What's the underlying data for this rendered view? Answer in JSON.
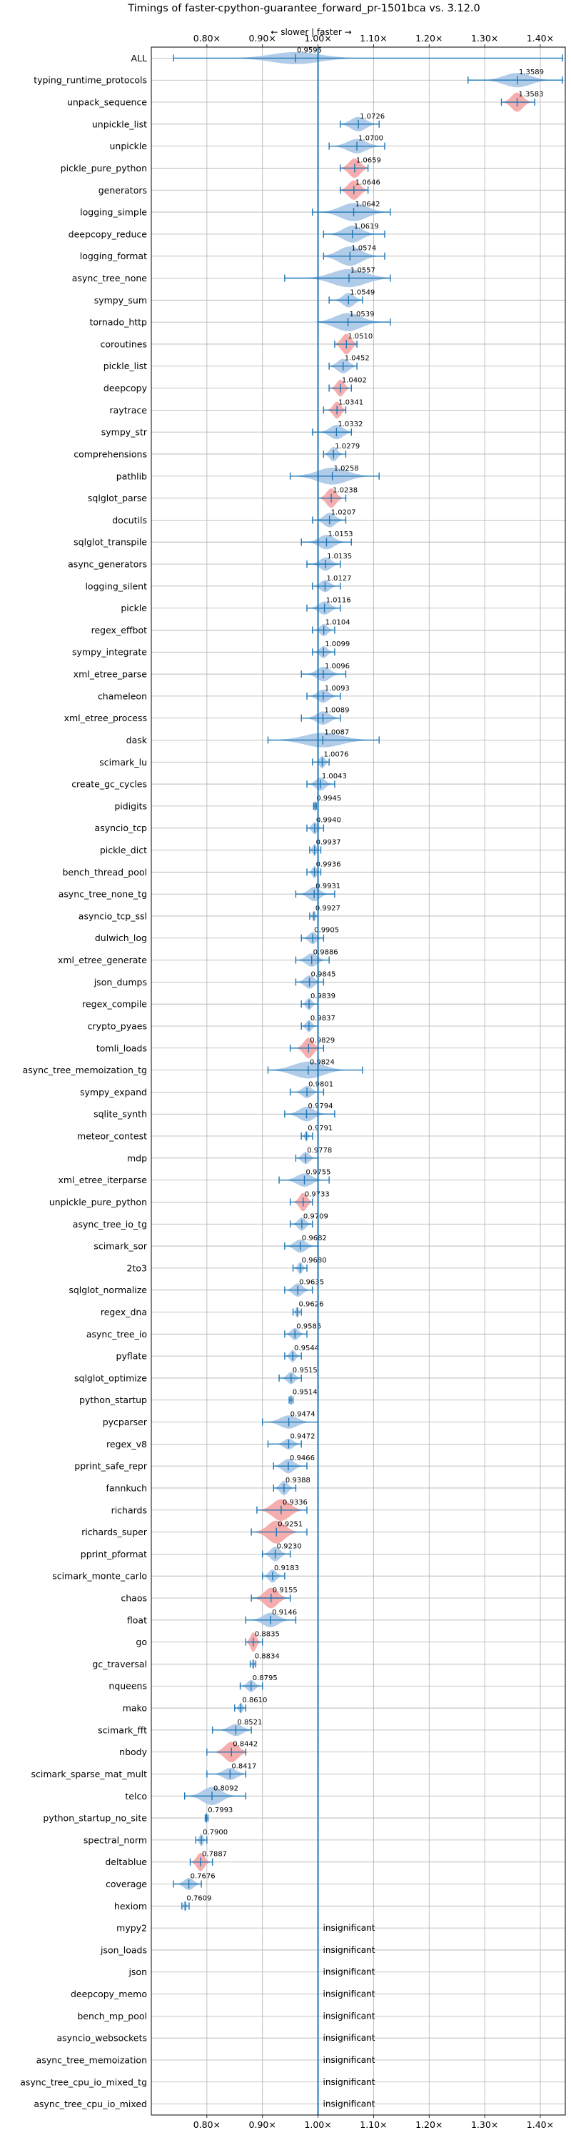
{
  "chart_data": {
    "type": "violin",
    "title": "Timings of faster-cpython-guarantee_forward_pr-1501bca vs. 3.12.0",
    "direction_hint": "← slower | faster →",
    "xlim": [
      0.7,
      1.445
    ],
    "xticks": [
      0.8,
      0.9,
      1.0,
      1.1,
      1.2,
      1.3,
      1.4
    ],
    "xtick_labels": [
      "0.80×",
      "0.90×",
      "1.00×",
      "1.10×",
      "1.20×",
      "1.30×",
      "1.40×"
    ],
    "baseline": 1.0,
    "grid": true,
    "colors": {
      "normal": "#a8c6e6",
      "highlight": "#f4a4a4",
      "line": "#1f77b4",
      "grid": "#b0b0b0"
    },
    "insignificant_label": "insignificant",
    "benchmarks": [
      {
        "name": "ALL",
        "value": 0.9595,
        "label": "0.9595",
        "lo": 0.74,
        "hi": 1.44,
        "spread": 0.13,
        "height": 0.5,
        "highlight": false
      },
      {
        "name": "typing_runtime_protocols",
        "value": 1.3589,
        "label": "1.3589",
        "lo": 1.27,
        "hi": 1.44,
        "spread": 0.07,
        "height": 0.6,
        "highlight": false
      },
      {
        "name": "unpack_sequence",
        "value": 1.3583,
        "label": "1.3583",
        "lo": 1.33,
        "hi": 1.39,
        "spread": 0.03,
        "height": 0.8,
        "highlight": true
      },
      {
        "name": "unpickle_list",
        "value": 1.0726,
        "label": "1.0726",
        "lo": 1.04,
        "hi": 1.11,
        "spread": 0.04,
        "height": 0.6,
        "highlight": false
      },
      {
        "name": "unpickle",
        "value": 1.07,
        "label": "1.0700",
        "lo": 1.02,
        "hi": 1.12,
        "spread": 0.05,
        "height": 0.6,
        "highlight": false
      },
      {
        "name": "pickle_pure_python",
        "value": 1.0659,
        "label": "1.0659",
        "lo": 1.04,
        "hi": 1.09,
        "spread": 0.03,
        "height": 0.8,
        "highlight": true
      },
      {
        "name": "generators",
        "value": 1.0646,
        "label": "1.0646",
        "lo": 1.04,
        "hi": 1.09,
        "spread": 0.03,
        "height": 0.8,
        "highlight": true
      },
      {
        "name": "logging_simple",
        "value": 1.0642,
        "label": "1.0642",
        "lo": 0.99,
        "hi": 1.13,
        "spread": 0.07,
        "height": 0.75,
        "highlight": false
      },
      {
        "name": "deepcopy_reduce",
        "value": 1.0619,
        "label": "1.0619",
        "lo": 1.01,
        "hi": 1.12,
        "spread": 0.05,
        "height": 0.7,
        "highlight": false
      },
      {
        "name": "logging_format",
        "value": 1.0574,
        "label": "1.0574",
        "lo": 1.01,
        "hi": 1.12,
        "spread": 0.06,
        "height": 0.8,
        "highlight": false
      },
      {
        "name": "async_tree_none",
        "value": 1.0557,
        "label": "1.0557",
        "lo": 0.94,
        "hi": 1.13,
        "spread": 0.09,
        "height": 0.75,
        "highlight": false
      },
      {
        "name": "sympy_sum",
        "value": 1.0549,
        "label": "1.0549",
        "lo": 1.02,
        "hi": 1.08,
        "spread": 0.03,
        "height": 0.6,
        "highlight": false
      },
      {
        "name": "tornado_http",
        "value": 1.0539,
        "label": "1.0539",
        "lo": 1.0,
        "hi": 1.13,
        "spread": 0.07,
        "height": 0.75,
        "highlight": false
      },
      {
        "name": "coroutines",
        "value": 1.051,
        "label": "1.0510",
        "lo": 1.03,
        "hi": 1.07,
        "spread": 0.025,
        "height": 0.85,
        "highlight": true
      },
      {
        "name": "pickle_list",
        "value": 1.0452,
        "label": "1.0452",
        "lo": 1.02,
        "hi": 1.07,
        "spread": 0.03,
        "height": 0.6,
        "highlight": false
      },
      {
        "name": "deepcopy",
        "value": 1.0402,
        "label": "1.0402",
        "lo": 1.02,
        "hi": 1.06,
        "spread": 0.02,
        "height": 0.7,
        "highlight": true
      },
      {
        "name": "raytrace",
        "value": 1.0341,
        "label": "1.0341",
        "lo": 1.01,
        "hi": 1.05,
        "spread": 0.02,
        "height": 0.7,
        "highlight": true
      },
      {
        "name": "sympy_str",
        "value": 1.0332,
        "label": "1.0332",
        "lo": 0.99,
        "hi": 1.06,
        "spread": 0.035,
        "height": 0.6,
        "highlight": false
      },
      {
        "name": "comprehensions",
        "value": 1.0279,
        "label": "1.0279",
        "lo": 1.01,
        "hi": 1.05,
        "spread": 0.02,
        "height": 0.6,
        "highlight": false
      },
      {
        "name": "pathlib",
        "value": 1.0258,
        "label": "1.0258",
        "lo": 0.95,
        "hi": 1.11,
        "spread": 0.08,
        "height": 0.7,
        "highlight": false
      },
      {
        "name": "sqlglot_parse",
        "value": 1.0238,
        "label": "1.0238",
        "lo": 1.0,
        "hi": 1.05,
        "spread": 0.025,
        "height": 0.8,
        "highlight": true
      },
      {
        "name": "docutils",
        "value": 1.0207,
        "label": "1.0207",
        "lo": 0.99,
        "hi": 1.05,
        "spread": 0.03,
        "height": 0.6,
        "highlight": false
      },
      {
        "name": "sqlglot_transpile",
        "value": 1.0153,
        "label": "1.0153",
        "lo": 0.97,
        "hi": 1.06,
        "spread": 0.04,
        "height": 0.6,
        "highlight": false
      },
      {
        "name": "async_generators",
        "value": 1.0135,
        "label": "1.0135",
        "lo": 0.98,
        "hi": 1.04,
        "spread": 0.03,
        "height": 0.55,
        "highlight": false
      },
      {
        "name": "logging_silent",
        "value": 1.0127,
        "label": "1.0127",
        "lo": 0.99,
        "hi": 1.04,
        "spread": 0.025,
        "height": 0.5,
        "highlight": false
      },
      {
        "name": "pickle",
        "value": 1.0116,
        "label": "1.0116",
        "lo": 0.98,
        "hi": 1.04,
        "spread": 0.03,
        "height": 0.55,
        "highlight": false
      },
      {
        "name": "regex_effbot",
        "value": 1.0104,
        "label": "1.0104",
        "lo": 0.99,
        "hi": 1.03,
        "spread": 0.02,
        "height": 0.5,
        "highlight": false
      },
      {
        "name": "sympy_integrate",
        "value": 1.0099,
        "label": "1.0099",
        "lo": 0.99,
        "hi": 1.03,
        "spread": 0.02,
        "height": 0.5,
        "highlight": false
      },
      {
        "name": "xml_etree_parse",
        "value": 1.0096,
        "label": "1.0096",
        "lo": 0.97,
        "hi": 1.05,
        "spread": 0.035,
        "height": 0.6,
        "highlight": false
      },
      {
        "name": "chameleon",
        "value": 1.0093,
        "label": "1.0093",
        "lo": 0.98,
        "hi": 1.04,
        "spread": 0.03,
        "height": 0.55,
        "highlight": false
      },
      {
        "name": "xml_etree_process",
        "value": 1.0089,
        "label": "1.0089",
        "lo": 0.97,
        "hi": 1.04,
        "spread": 0.035,
        "height": 0.55,
        "highlight": false
      },
      {
        "name": "dask",
        "value": 1.0087,
        "label": "1.0087",
        "lo": 0.91,
        "hi": 1.11,
        "spread": 0.1,
        "height": 0.6,
        "highlight": false
      },
      {
        "name": "scimark_lu",
        "value": 1.0076,
        "label": "1.0076",
        "lo": 0.99,
        "hi": 1.02,
        "spread": 0.015,
        "height": 0.5,
        "highlight": false
      },
      {
        "name": "create_gc_cycles",
        "value": 1.0043,
        "label": "1.0043",
        "lo": 0.98,
        "hi": 1.03,
        "spread": 0.025,
        "height": 0.55,
        "highlight": false
      },
      {
        "name": "pidigits",
        "value": 0.9945,
        "label": "0.9945",
        "lo": 0.992,
        "hi": 0.997,
        "spread": 0.003,
        "height": 0.45,
        "highlight": false
      },
      {
        "name": "asyncio_tcp",
        "value": 0.994,
        "label": "0.9940",
        "lo": 0.98,
        "hi": 1.01,
        "spread": 0.015,
        "height": 0.5,
        "highlight": false
      },
      {
        "name": "pickle_dict",
        "value": 0.9937,
        "label": "0.9937",
        "lo": 0.985,
        "hi": 1.005,
        "spread": 0.01,
        "height": 0.5,
        "highlight": false
      },
      {
        "name": "bench_thread_pool",
        "value": 0.9936,
        "label": "0.9936",
        "lo": 0.98,
        "hi": 1.005,
        "spread": 0.012,
        "height": 0.5,
        "highlight": false
      },
      {
        "name": "async_tree_none_tg",
        "value": 0.9931,
        "label": "0.9931",
        "lo": 0.96,
        "hi": 1.03,
        "spread": 0.03,
        "height": 0.6,
        "highlight": false
      },
      {
        "name": "asyncio_tcp_ssl",
        "value": 0.9927,
        "label": "0.9927",
        "lo": 0.985,
        "hi": 1.0,
        "spread": 0.008,
        "height": 0.45,
        "highlight": false
      },
      {
        "name": "dulwich_log",
        "value": 0.9905,
        "label": "0.9905",
        "lo": 0.97,
        "hi": 1.01,
        "spread": 0.02,
        "height": 0.5,
        "highlight": false
      },
      {
        "name": "xml_etree_generate",
        "value": 0.9886,
        "label": "0.9886",
        "lo": 0.96,
        "hi": 1.02,
        "spread": 0.03,
        "height": 0.55,
        "highlight": false
      },
      {
        "name": "json_dumps",
        "value": 0.9845,
        "label": "0.9845",
        "lo": 0.96,
        "hi": 1.01,
        "spread": 0.025,
        "height": 0.55,
        "highlight": false
      },
      {
        "name": "regex_compile",
        "value": 0.9839,
        "label": "0.9839",
        "lo": 0.97,
        "hi": 1.0,
        "spread": 0.015,
        "height": 0.5,
        "highlight": false
      },
      {
        "name": "crypto_pyaes",
        "value": 0.9837,
        "label": "0.9837",
        "lo": 0.97,
        "hi": 1.0,
        "spread": 0.015,
        "height": 0.5,
        "highlight": false
      },
      {
        "name": "tomli_loads",
        "value": 0.9829,
        "label": "0.9829",
        "lo": 0.95,
        "hi": 1.01,
        "spread": 0.025,
        "height": 0.85,
        "highlight": true
      },
      {
        "name": "async_tree_memoization_tg",
        "value": 0.9824,
        "label": "0.9824",
        "lo": 0.91,
        "hi": 1.08,
        "spread": 0.08,
        "height": 0.7,
        "highlight": false
      },
      {
        "name": "sympy_expand",
        "value": 0.9801,
        "label": "0.9801",
        "lo": 0.95,
        "hi": 1.01,
        "spread": 0.025,
        "height": 0.5,
        "highlight": false
      },
      {
        "name": "sqlite_synth",
        "value": 0.9794,
        "label": "0.9794",
        "lo": 0.94,
        "hi": 1.03,
        "spread": 0.04,
        "height": 0.6,
        "highlight": false
      },
      {
        "name": "meteor_contest",
        "value": 0.9791,
        "label": "0.9791",
        "lo": 0.97,
        "hi": 0.99,
        "spread": 0.008,
        "height": 0.45,
        "highlight": false
      },
      {
        "name": "mdp",
        "value": 0.9778,
        "label": "0.9778",
        "lo": 0.96,
        "hi": 1.0,
        "spread": 0.02,
        "height": 0.5,
        "highlight": false
      },
      {
        "name": "xml_etree_iterparse",
        "value": 0.9755,
        "label": "0.9755",
        "lo": 0.93,
        "hi": 1.02,
        "spread": 0.04,
        "height": 0.55,
        "highlight": false
      },
      {
        "name": "unpickle_pure_python",
        "value": 0.9733,
        "label": "0.9733",
        "lo": 0.95,
        "hi": 0.99,
        "spread": 0.02,
        "height": 0.75,
        "highlight": true
      },
      {
        "name": "async_tree_io_tg",
        "value": 0.9709,
        "label": "0.9709",
        "lo": 0.95,
        "hi": 0.99,
        "spread": 0.02,
        "height": 0.55,
        "highlight": false
      },
      {
        "name": "scimark_sor",
        "value": 0.9682,
        "label": "0.9682",
        "lo": 0.94,
        "hi": 1.0,
        "spread": 0.03,
        "height": 0.55,
        "highlight": false
      },
      {
        "name": "2to3",
        "value": 0.968,
        "label": "0.9680",
        "lo": 0.955,
        "hi": 0.98,
        "spread": 0.012,
        "height": 0.5,
        "highlight": false
      },
      {
        "name": "sqlglot_normalize",
        "value": 0.9635,
        "label": "0.9635",
        "lo": 0.94,
        "hi": 0.99,
        "spread": 0.025,
        "height": 0.55,
        "highlight": false
      },
      {
        "name": "regex_dna",
        "value": 0.9626,
        "label": "0.9626",
        "lo": 0.955,
        "hi": 0.97,
        "spread": 0.008,
        "height": 0.45,
        "highlight": false
      },
      {
        "name": "async_tree_io",
        "value": 0.9585,
        "label": "0.9585",
        "lo": 0.94,
        "hi": 0.98,
        "spread": 0.02,
        "height": 0.5,
        "highlight": false
      },
      {
        "name": "pyflate",
        "value": 0.9544,
        "label": "0.9544",
        "lo": 0.94,
        "hi": 0.97,
        "spread": 0.015,
        "height": 0.5,
        "highlight": false
      },
      {
        "name": "sqlglot_optimize",
        "value": 0.9515,
        "label": "0.9515",
        "lo": 0.93,
        "hi": 0.97,
        "spread": 0.02,
        "height": 0.5,
        "highlight": false
      },
      {
        "name": "python_startup",
        "value": 0.9514,
        "label": "0.9514",
        "lo": 0.948,
        "hi": 0.955,
        "spread": 0.004,
        "height": 0.45,
        "highlight": false
      },
      {
        "name": "pycparser",
        "value": 0.9474,
        "label": "0.9474",
        "lo": 0.9,
        "hi": 1.0,
        "spread": 0.045,
        "height": 0.55,
        "highlight": false
      },
      {
        "name": "regex_v8",
        "value": 0.9472,
        "label": "0.9472",
        "lo": 0.91,
        "hi": 0.97,
        "spread": 0.025,
        "height": 0.45,
        "highlight": false
      },
      {
        "name": "pprint_safe_repr",
        "value": 0.9466,
        "label": "0.9466",
        "lo": 0.92,
        "hi": 0.98,
        "spread": 0.03,
        "height": 0.6,
        "highlight": false
      },
      {
        "name": "fannkuch",
        "value": 0.9388,
        "label": "0.9388",
        "lo": 0.92,
        "hi": 0.96,
        "spread": 0.02,
        "height": 0.6,
        "highlight": false
      },
      {
        "name": "richards",
        "value": 0.9336,
        "label": "0.9336",
        "lo": 0.89,
        "hi": 0.98,
        "spread": 0.045,
        "height": 0.9,
        "highlight": true
      },
      {
        "name": "richards_super",
        "value": 0.9251,
        "label": "0.9251",
        "lo": 0.88,
        "hi": 0.98,
        "spread": 0.045,
        "height": 0.95,
        "highlight": true
      },
      {
        "name": "pprint_pformat",
        "value": 0.923,
        "label": "0.9230",
        "lo": 0.9,
        "hi": 0.95,
        "spread": 0.025,
        "height": 0.6,
        "highlight": false
      },
      {
        "name": "scimark_monte_carlo",
        "value": 0.9183,
        "label": "0.9183",
        "lo": 0.9,
        "hi": 0.94,
        "spread": 0.02,
        "height": 0.55,
        "highlight": false
      },
      {
        "name": "chaos",
        "value": 0.9155,
        "label": "0.9155",
        "lo": 0.88,
        "hi": 0.95,
        "spread": 0.035,
        "height": 0.85,
        "highlight": true
      },
      {
        "name": "float",
        "value": 0.9146,
        "label": "0.9146",
        "lo": 0.87,
        "hi": 0.96,
        "spread": 0.04,
        "height": 0.6,
        "highlight": false
      },
      {
        "name": "go",
        "value": 0.8835,
        "label": "0.8835",
        "lo": 0.87,
        "hi": 0.9,
        "spread": 0.015,
        "height": 0.8,
        "highlight": true
      },
      {
        "name": "gc_traversal",
        "value": 0.8834,
        "label": "0.8834",
        "lo": 0.878,
        "hi": 0.888,
        "spread": 0.005,
        "height": 0.45,
        "highlight": false
      },
      {
        "name": "nqueens",
        "value": 0.8795,
        "label": "0.8795",
        "lo": 0.86,
        "hi": 0.9,
        "spread": 0.02,
        "height": 0.5,
        "highlight": false
      },
      {
        "name": "mako",
        "value": 0.861,
        "label": "0.8610",
        "lo": 0.85,
        "hi": 0.87,
        "spread": 0.01,
        "height": 0.45,
        "highlight": false
      },
      {
        "name": "scimark_fft",
        "value": 0.8521,
        "label": "0.8521",
        "lo": 0.81,
        "hi": 0.88,
        "spread": 0.035,
        "height": 0.5,
        "highlight": false
      },
      {
        "name": "nbody",
        "value": 0.8442,
        "label": "0.8442",
        "lo": 0.8,
        "hi": 0.87,
        "spread": 0.035,
        "height": 0.85,
        "highlight": true
      },
      {
        "name": "scimark_sparse_mat_mult",
        "value": 0.8417,
        "label": "0.8417",
        "lo": 0.8,
        "hi": 0.87,
        "spread": 0.035,
        "height": 0.5,
        "highlight": false
      },
      {
        "name": "telco",
        "value": 0.8092,
        "label": "0.8092",
        "lo": 0.76,
        "hi": 0.87,
        "spread": 0.05,
        "height": 0.75,
        "highlight": false
      },
      {
        "name": "python_startup_no_site",
        "value": 0.7993,
        "label": "0.7993",
        "lo": 0.797,
        "hi": 0.802,
        "spread": 0.003,
        "height": 0.45,
        "highlight": false
      },
      {
        "name": "spectral_norm",
        "value": 0.79,
        "label": "0.7900",
        "lo": 0.78,
        "hi": 0.8,
        "spread": 0.01,
        "height": 0.5,
        "highlight": false
      },
      {
        "name": "deltablue",
        "value": 0.7887,
        "label": "0.7887",
        "lo": 0.77,
        "hi": 0.81,
        "spread": 0.02,
        "height": 0.75,
        "highlight": true
      },
      {
        "name": "coverage",
        "value": 0.7676,
        "label": "0.7676",
        "lo": 0.74,
        "hi": 0.79,
        "spread": 0.025,
        "height": 0.5,
        "highlight": false
      },
      {
        "name": "hexiom",
        "value": 0.7609,
        "label": "0.7609",
        "lo": 0.755,
        "hi": 0.768,
        "spread": 0.006,
        "height": 0.45,
        "highlight": false
      },
      {
        "name": "mypy2",
        "insignificant": true
      },
      {
        "name": "json_loads",
        "insignificant": true
      },
      {
        "name": "json",
        "insignificant": true
      },
      {
        "name": "deepcopy_memo",
        "insignificant": true
      },
      {
        "name": "bench_mp_pool",
        "insignificant": true
      },
      {
        "name": "asyncio_websockets",
        "insignificant": true
      },
      {
        "name": "async_tree_memoization",
        "insignificant": true
      },
      {
        "name": "async_tree_cpu_io_mixed_tg",
        "insignificant": true
      },
      {
        "name": "async_tree_cpu_io_mixed",
        "insignificant": true
      }
    ]
  }
}
